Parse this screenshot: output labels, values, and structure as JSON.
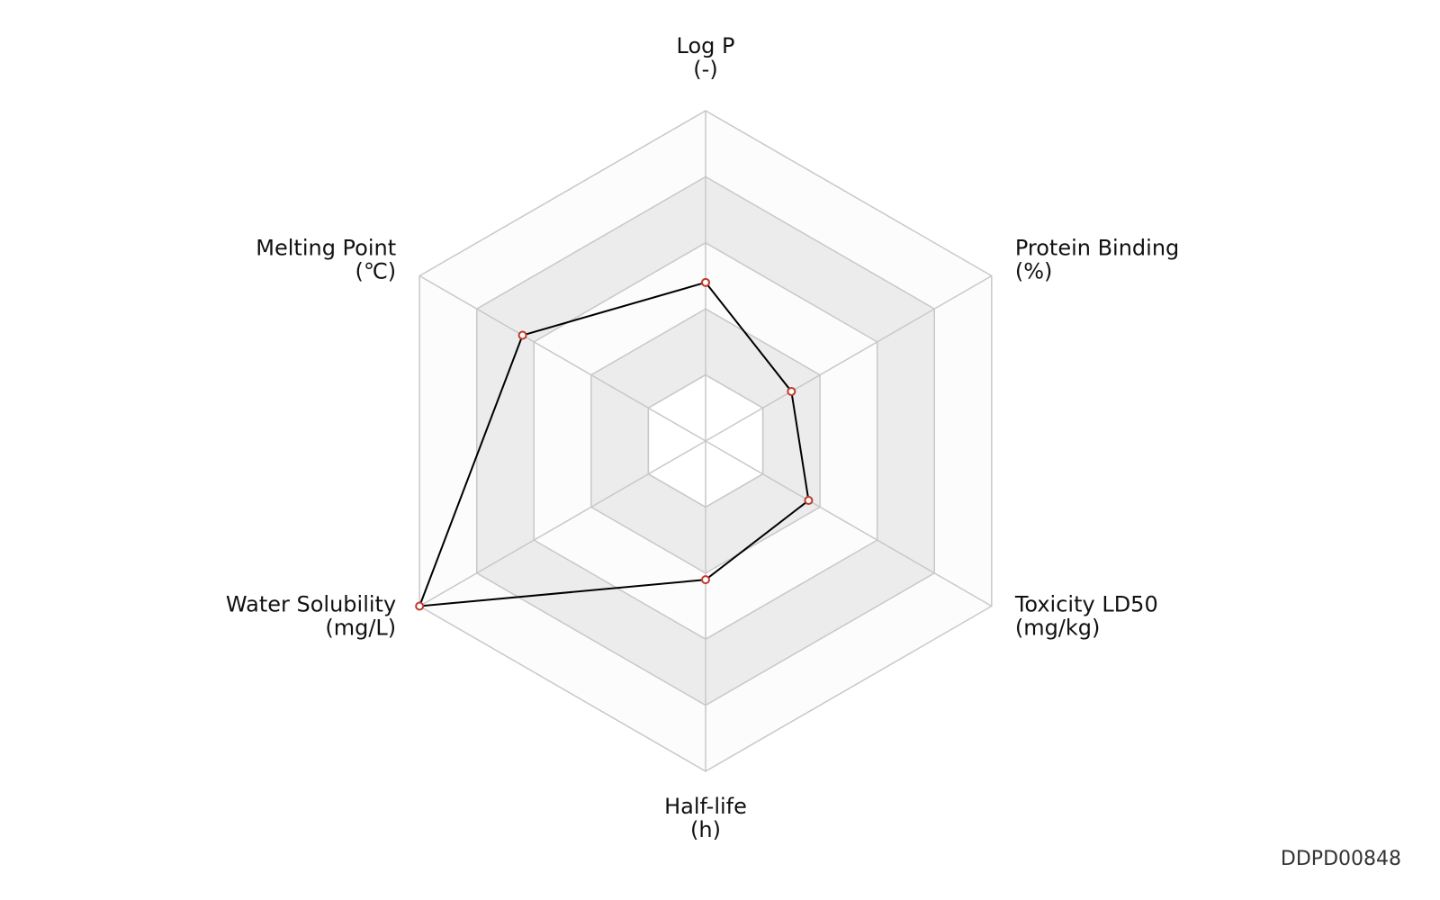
{
  "chart_data": {
    "type": "radar",
    "categories": [
      "Log P",
      "Protein Binding",
      "Toxicity LD50",
      "Half-life",
      "Water Solubility",
      "Melting Point"
    ],
    "units": [
      "(-)",
      "(%)",
      "(mg/kg)",
      "(h)",
      "(mg/L)",
      "(℃)"
    ],
    "series": [
      {
        "color": "#000000",
        "marker_color": "#c0392b",
        "values": [
          0.48,
          0.3,
          0.36,
          0.42,
          1.0,
          0.64
        ]
      }
    ],
    "rlim": [
      0,
      1
    ],
    "rticks": [
      0.2,
      0.4,
      0.6,
      0.8,
      1.0
    ],
    "grid": true
  },
  "footer_id": "DDPD00848"
}
